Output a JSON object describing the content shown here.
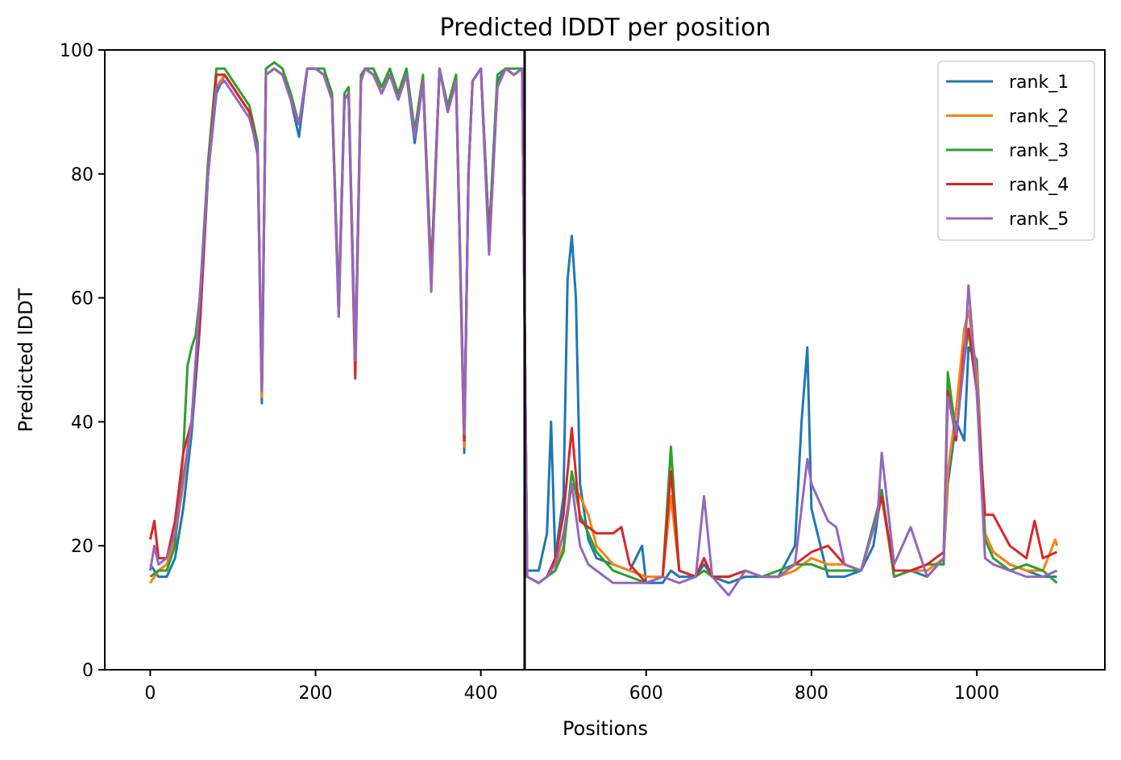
{
  "chart_data": {
    "type": "line",
    "title": "Predicted lDDT per position",
    "xlabel": "Positions",
    "ylabel": "Predicted lDDT",
    "xlim": [
      -55,
      1155
    ],
    "ylim": [
      0,
      100
    ],
    "xticks": [
      0,
      200,
      400,
      600,
      800,
      1000
    ],
    "yticks": [
      0,
      20,
      40,
      60,
      80,
      100
    ],
    "xtick_labels": [
      "0",
      "200",
      "400",
      "600",
      "800",
      "1000"
    ],
    "ytick_labels": [
      "0",
      "20",
      "40",
      "60",
      "80",
      "100"
    ],
    "grid": false,
    "legend_position": "top-right",
    "vline_x": 453,
    "vline_color": "#000000",
    "series": [
      {
        "name": "rank_1",
        "color": "#1f77b4",
        "x": [
          0,
          10,
          20,
          30,
          40,
          50,
          60,
          70,
          80,
          90,
          100,
          110,
          120,
          130,
          135,
          140,
          150,
          160,
          170,
          180,
          190,
          200,
          210,
          220,
          228,
          235,
          240,
          248,
          255,
          260,
          270,
          280,
          290,
          300,
          310,
          320,
          330,
          340,
          350,
          360,
          370,
          380,
          385,
          390,
          400,
          410,
          420,
          430,
          440,
          450,
          456,
          470,
          480,
          485,
          490,
          500,
          505,
          510,
          515,
          520,
          530,
          540,
          560,
          580,
          595,
          600,
          620,
          630,
          640,
          660,
          670,
          680,
          700,
          720,
          740,
          760,
          780,
          788,
          795,
          800,
          820,
          840,
          860,
          875,
          885,
          900,
          920,
          940,
          960,
          965,
          975,
          985,
          990,
          1000,
          1010,
          1020,
          1040,
          1060,
          1080,
          1097
        ],
        "y": [
          17,
          15,
          15,
          18,
          26,
          38,
          55,
          80,
          93,
          96,
          94,
          92,
          90,
          83,
          43,
          96,
          97,
          96,
          92,
          86,
          97,
          97,
          96,
          92,
          57,
          92,
          93,
          50,
          95,
          97,
          96,
          93,
          96,
          92,
          96,
          85,
          95,
          64,
          97,
          90,
          96,
          35,
          80,
          95,
          97,
          70,
          95,
          97,
          96,
          97,
          16,
          16,
          22,
          40,
          18,
          28,
          63,
          70,
          60,
          30,
          21,
          18,
          17,
          16,
          20,
          14,
          14,
          16,
          15,
          15,
          17,
          15,
          14,
          15,
          15,
          15,
          20,
          40,
          52,
          26,
          15,
          15,
          16,
          20,
          29,
          15,
          16,
          15,
          18,
          30,
          40,
          37,
          52,
          50,
          22,
          19,
          17,
          16,
          15,
          15
        ]
      },
      {
        "name": "rank_2",
        "color": "#ff7f0e",
        "x": [
          0,
          10,
          20,
          30,
          40,
          50,
          60,
          70,
          80,
          90,
          100,
          110,
          120,
          130,
          135,
          140,
          150,
          160,
          170,
          180,
          190,
          200,
          210,
          220,
          228,
          235,
          240,
          248,
          255,
          260,
          270,
          280,
          290,
          300,
          310,
          320,
          330,
          340,
          350,
          360,
          370,
          380,
          385,
          390,
          400,
          410,
          420,
          430,
          440,
          450,
          456,
          470,
          480,
          490,
          500,
          510,
          520,
          530,
          540,
          560,
          580,
          600,
          620,
          630,
          640,
          660,
          670,
          680,
          700,
          720,
          740,
          760,
          780,
          800,
          820,
          840,
          860,
          880,
          885,
          900,
          920,
          940,
          960,
          965,
          975,
          985,
          990,
          1000,
          1010,
          1020,
          1040,
          1060,
          1080,
          1095,
          1097
        ],
        "y": [
          14,
          16,
          17,
          21,
          30,
          40,
          58,
          81,
          94,
          96,
          94,
          92,
          90,
          84,
          44,
          96,
          97,
          96,
          92,
          88,
          97,
          97,
          96,
          92,
          58,
          92,
          93,
          48,
          95,
          97,
          96,
          93,
          96,
          92,
          96,
          86,
          95,
          63,
          97,
          90,
          95,
          36,
          80,
          95,
          97,
          68,
          94,
          97,
          96,
          97,
          15,
          14,
          15,
          16,
          20,
          30,
          28,
          25,
          20,
          17,
          16,
          15,
          15,
          28,
          16,
          15,
          18,
          15,
          15,
          16,
          15,
          15,
          16,
          18,
          17,
          17,
          16,
          25,
          28,
          15,
          16,
          16,
          18,
          32,
          42,
          55,
          58,
          48,
          22,
          19,
          17,
          16,
          16,
          21,
          20
        ]
      },
      {
        "name": "rank_3",
        "color": "#2ca02c",
        "x": [
          0,
          10,
          20,
          30,
          40,
          45,
          50,
          55,
          60,
          70,
          80,
          90,
          100,
          110,
          120,
          130,
          135,
          140,
          150,
          160,
          170,
          180,
          190,
          200,
          210,
          220,
          228,
          235,
          240,
          248,
          255,
          260,
          270,
          280,
          290,
          300,
          310,
          320,
          330,
          340,
          350,
          360,
          370,
          380,
          385,
          390,
          400,
          410,
          420,
          430,
          440,
          450,
          456,
          470,
          480,
          490,
          500,
          510,
          520,
          530,
          540,
          560,
          580,
          600,
          620,
          630,
          640,
          660,
          670,
          680,
          700,
          720,
          740,
          760,
          780,
          800,
          820,
          840,
          860,
          880,
          885,
          900,
          920,
          940,
          960,
          965,
          975,
          985,
          990,
          1000,
          1010,
          1020,
          1040,
          1060,
          1080,
          1097
        ],
        "y": [
          15,
          16,
          16,
          20,
          35,
          49,
          52,
          54,
          60,
          82,
          97,
          97,
          95,
          93,
          91,
          85,
          45,
          97,
          98,
          97,
          93,
          88,
          97,
          97,
          97,
          93,
          59,
          93,
          94,
          50,
          96,
          97,
          97,
          94,
          97,
          93,
          97,
          87,
          96,
          64,
          97,
          91,
          96,
          38,
          80,
          95,
          97,
          70,
          96,
          97,
          97,
          97,
          15,
          14,
          15,
          16,
          19,
          32,
          25,
          22,
          19,
          16,
          15,
          14,
          15,
          36,
          16,
          15,
          16,
          15,
          15,
          16,
          15,
          16,
          17,
          17,
          16,
          16,
          16,
          26,
          29,
          15,
          16,
          17,
          17,
          48,
          38,
          50,
          55,
          45,
          21,
          18,
          16,
          17,
          16,
          14
        ]
      },
      {
        "name": "rank_4",
        "color": "#d62728",
        "x": [
          0,
          5,
          10,
          20,
          30,
          40,
          50,
          60,
          70,
          80,
          90,
          100,
          110,
          120,
          130,
          135,
          140,
          150,
          160,
          170,
          180,
          190,
          200,
          210,
          220,
          228,
          235,
          240,
          248,
          255,
          260,
          270,
          280,
          290,
          300,
          310,
          320,
          330,
          340,
          350,
          360,
          370,
          380,
          385,
          390,
          400,
          410,
          420,
          430,
          440,
          450,
          456,
          470,
          480,
          490,
          500,
          510,
          520,
          530,
          540,
          560,
          570,
          580,
          600,
          620,
          630,
          640,
          660,
          670,
          680,
          700,
          720,
          740,
          760,
          780,
          800,
          820,
          840,
          860,
          880,
          885,
          900,
          920,
          940,
          960,
          965,
          975,
          985,
          990,
          1000,
          1010,
          1020,
          1040,
          1060,
          1070,
          1080,
          1097
        ],
        "y": [
          21,
          24,
          18,
          18,
          24,
          35,
          40,
          56,
          80,
          96,
          96,
          94,
          92,
          90,
          84,
          45,
          96,
          97,
          96,
          92,
          88,
          97,
          97,
          96,
          92,
          58,
          92,
          93,
          47,
          95,
          97,
          96,
          93,
          96,
          92,
          96,
          86,
          95,
          63,
          97,
          90,
          95,
          37,
          80,
          95,
          97,
          68,
          94,
          97,
          96,
          97,
          15,
          14,
          15,
          18,
          25,
          39,
          24,
          23,
          22,
          22,
          23,
          17,
          14,
          15,
          32,
          16,
          15,
          18,
          15,
          15,
          16,
          15,
          15,
          17,
          19,
          20,
          17,
          16,
          25,
          28,
          16,
          16,
          17,
          19,
          45,
          37,
          52,
          55,
          45,
          25,
          25,
          20,
          18,
          24,
          18,
          19
        ]
      },
      {
        "name": "rank_5",
        "color": "#9467bd",
        "x": [
          0,
          5,
          10,
          20,
          30,
          40,
          50,
          60,
          70,
          80,
          90,
          100,
          110,
          120,
          130,
          135,
          140,
          150,
          160,
          170,
          180,
          190,
          200,
          210,
          220,
          228,
          235,
          240,
          248,
          255,
          260,
          270,
          280,
          290,
          300,
          310,
          320,
          330,
          340,
          350,
          360,
          370,
          380,
          385,
          390,
          400,
          410,
          420,
          430,
          440,
          450,
          456,
          470,
          480,
          490,
          500,
          510,
          520,
          530,
          540,
          560,
          580,
          600,
          620,
          640,
          660,
          670,
          680,
          700,
          720,
          740,
          760,
          780,
          795,
          800,
          820,
          830,
          840,
          860,
          880,
          885,
          900,
          920,
          940,
          960,
          965,
          975,
          985,
          990,
          1000,
          1010,
          1020,
          1040,
          1060,
          1080,
          1097
        ],
        "y": [
          16,
          20,
          17,
          18,
          22,
          31,
          40,
          60,
          80,
          94,
          95,
          93,
          91,
          89,
          84,
          45,
          96,
          97,
          96,
          92,
          88,
          97,
          97,
          96,
          92,
          57,
          92,
          93,
          50,
          95,
          97,
          96,
          93,
          96,
          92,
          96,
          86,
          95,
          61,
          97,
          90,
          95,
          38,
          80,
          95,
          97,
          67,
          94,
          97,
          96,
          97,
          15,
          14,
          15,
          17,
          22,
          30,
          20,
          17,
          16,
          14,
          14,
          14,
          15,
          14,
          15,
          28,
          15,
          12,
          16,
          15,
          15,
          17,
          34,
          30,
          24,
          23,
          17,
          16,
          25,
          35,
          17,
          23,
          15,
          18,
          44,
          38,
          50,
          62,
          45,
          18,
          17,
          16,
          15,
          15,
          16
        ]
      }
    ]
  }
}
